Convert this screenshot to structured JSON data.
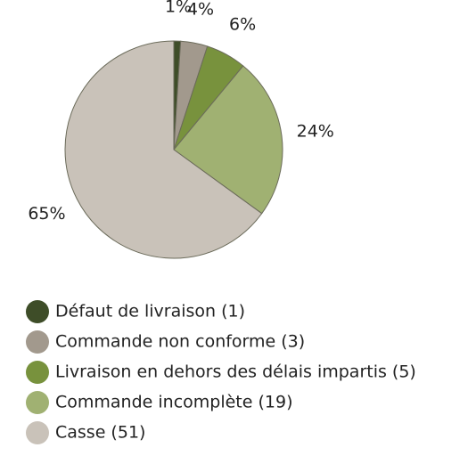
{
  "chart_data": {
    "type": "pie",
    "categories": [
      "Défaut de livraison (1)",
      "Commande non conforme (3)",
      "Livraison en dehors des délais impartis  (5)",
      "Commande incomplète (19)",
      "Casse (51)"
    ],
    "values": [
      1,
      4,
      6,
      24,
      65
    ],
    "value_labels": [
      "1%",
      "4%",
      "6%",
      "24%",
      "65%"
    ],
    "colors": [
      "#3e4d28",
      "#a2998d",
      "#78923d",
      "#a0b172",
      "#c9c2b9"
    ]
  }
}
